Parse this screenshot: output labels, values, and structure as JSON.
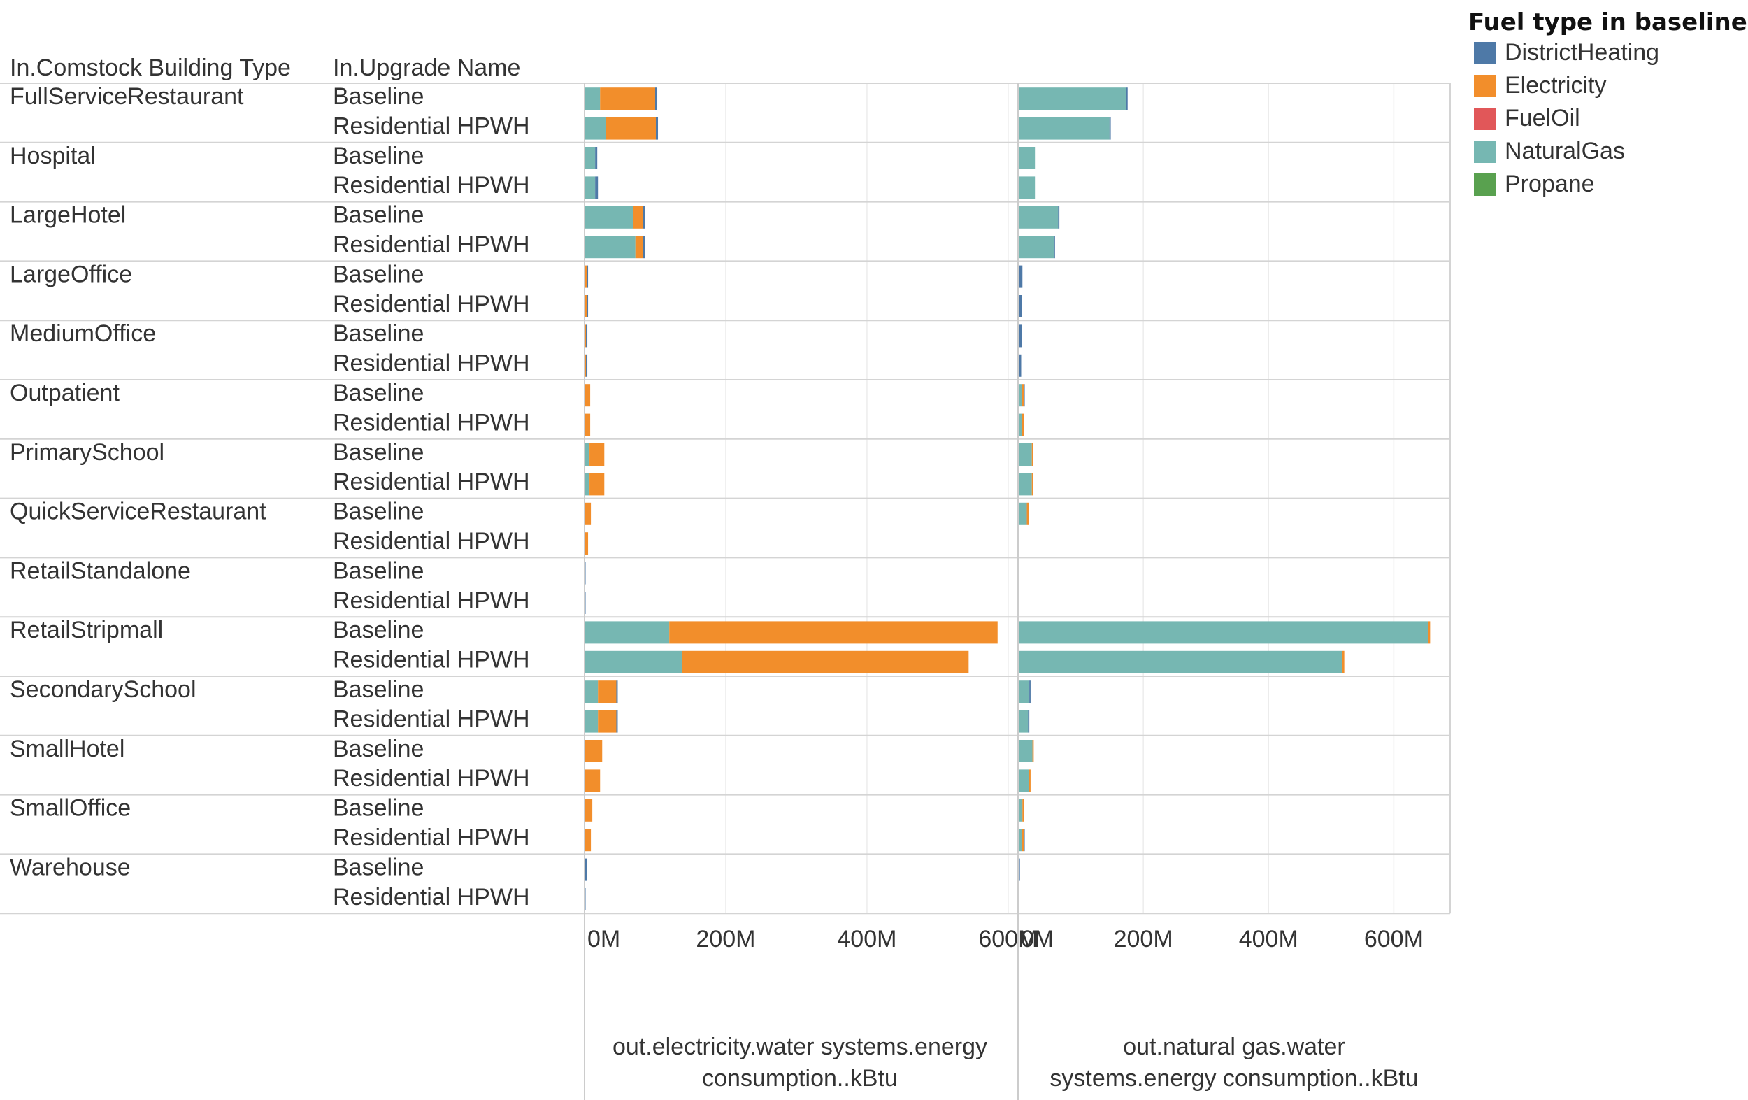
{
  "chart_data": {
    "type": "bar",
    "orientation": "horizontal",
    "stacked": true,
    "row_headers": [
      "In.Comstock Building Type",
      "In.Upgrade Name"
    ],
    "building_types": [
      "FullServiceRestaurant",
      "Hospital",
      "LargeHotel",
      "LargeOffice",
      "MediumOffice",
      "Outpatient",
      "PrimarySchool",
      "QuickServiceRestaurant",
      "RetailStandalone",
      "RetailStripmall",
      "SecondarySchool",
      "SmallHotel",
      "SmallOffice",
      "Warehouse"
    ],
    "upgrades": [
      "Baseline",
      "Residential HPWH"
    ],
    "legend": {
      "title": "Fuel type in baseline",
      "position": "top-right",
      "items": [
        {
          "name": "DistrictHeating",
          "color": "#4e79a7"
        },
        {
          "name": "Electricity",
          "color": "#f28e2b"
        },
        {
          "name": "FuelOil",
          "color": "#e15759"
        },
        {
          "name": "NaturalGas",
          "color": "#76b7b2"
        },
        {
          "name": "Propane",
          "color": "#59a14f"
        }
      ]
    },
    "panels": [
      {
        "label_lines": [
          "out.electricity.water systems.energy",
          "consumption..kBtu"
        ],
        "xlim": [
          0,
          610
        ],
        "unit": "M kBtu",
        "tick_values": [
          0,
          200,
          400,
          600
        ],
        "tick_labels": [
          "0M",
          "200M",
          "400M",
          "600M"
        ],
        "rows": [
          [
            [
              22,
              78,
              0,
              0,
              3
            ],
            [
              30,
              71,
              0,
              0,
              3
            ]
          ],
          [
            [
              15,
              0,
              0,
              0,
              3
            ],
            [
              15,
              0,
              0,
              0,
              4
            ]
          ],
          [
            [
              69,
              14,
              0,
              0,
              3
            ],
            [
              72,
              11,
              0,
              0,
              3
            ]
          ],
          [
            [
              0,
              3,
              0,
              0,
              2
            ],
            [
              0,
              3,
              0,
              0,
              2
            ]
          ],
          [
            [
              0,
              2,
              0,
              0,
              2
            ],
            [
              0,
              2,
              0,
              0,
              2
            ]
          ],
          [
            [
              0,
              8,
              0,
              0,
              0
            ],
            [
              0,
              8,
              0,
              0,
              0
            ]
          ],
          [
            [
              7,
              21,
              0,
              0,
              0
            ],
            [
              7,
              21,
              0,
              0,
              0
            ]
          ],
          [
            [
              0,
              9,
              0,
              0,
              0
            ],
            [
              0,
              5,
              0,
              0,
              0
            ]
          ],
          [
            [
              0,
              0,
              0,
              0,
              1
            ],
            [
              0,
              0,
              0,
              0,
              1
            ]
          ],
          [
            [
              120,
              465,
              0,
              0,
              0
            ],
            [
              138,
              406,
              0,
              0,
              0
            ]
          ],
          [
            [
              19,
              26,
              0,
              0,
              2
            ],
            [
              19,
              26,
              0,
              0,
              2
            ]
          ],
          [
            [
              0,
              25,
              0,
              0,
              0
            ],
            [
              0,
              22,
              0,
              0,
              0
            ]
          ],
          [
            [
              0,
              11,
              0,
              0,
              0
            ],
            [
              0,
              9,
              0,
              0,
              0
            ]
          ],
          [
            [
              0,
              0,
              0,
              0,
              3
            ],
            [
              0,
              0,
              0,
              0,
              1
            ]
          ]
        ]
      },
      {
        "label_lines": [
          "out.natural gas.water",
          "systems.energy consumption..kBtu"
        ],
        "xlim": [
          0,
          690
        ],
        "unit": "M kBtu",
        "tick_values": [
          0,
          200,
          400,
          600
        ],
        "tick_labels": [
          "0M",
          "200M",
          "400M",
          "600M"
        ],
        "rows": [
          [
            [
              172,
              0,
              0,
              0,
              3
            ],
            [
              146,
              0,
              0,
              0,
              2
            ]
          ],
          [
            [
              27,
              0,
              0,
              0,
              0
            ],
            [
              27,
              0,
              0,
              0,
              0
            ]
          ],
          [
            [
              64,
              0,
              0,
              0,
              2
            ],
            [
              57,
              0,
              0,
              0,
              2
            ]
          ],
          [
            [
              0,
              0,
              0,
              0,
              7
            ],
            [
              0,
              0,
              0,
              0,
              6
            ]
          ],
          [
            [
              0,
              0,
              0,
              0,
              6
            ],
            [
              0,
              0,
              0,
              0,
              5
            ]
          ],
          [
            [
              6,
              3,
              0,
              0,
              1
            ],
            [
              6,
              3,
              0,
              0,
              0
            ]
          ],
          [
            [
              22,
              2,
              0,
              0,
              0
            ],
            [
              22,
              2,
              0,
              0,
              0
            ]
          ],
          [
            [
              14,
              3,
              0,
              0,
              0
            ],
            [
              0,
              2,
              0,
              0,
              0
            ]
          ],
          [
            [
              0,
              0,
              0,
              0,
              2
            ],
            [
              0,
              0,
              0,
              0,
              2
            ]
          ],
          [
            [
              655,
              3,
              0,
              0,
              0
            ],
            [
              518,
              3,
              0,
              0,
              0
            ]
          ],
          [
            [
              18,
              0,
              0,
              0,
              2
            ],
            [
              16,
              0,
              0,
              0,
              2
            ]
          ],
          [
            [
              23,
              2,
              0,
              0,
              0
            ],
            [
              17,
              3,
              0,
              0,
              0
            ]
          ],
          [
            [
              7,
              3,
              0,
              0,
              0
            ],
            [
              6,
              3,
              0,
              0,
              1
            ]
          ],
          [
            [
              0,
              0,
              0,
              0,
              3
            ],
            [
              0,
              0,
              0,
              0,
              2
            ]
          ]
        ]
      }
    ]
  }
}
